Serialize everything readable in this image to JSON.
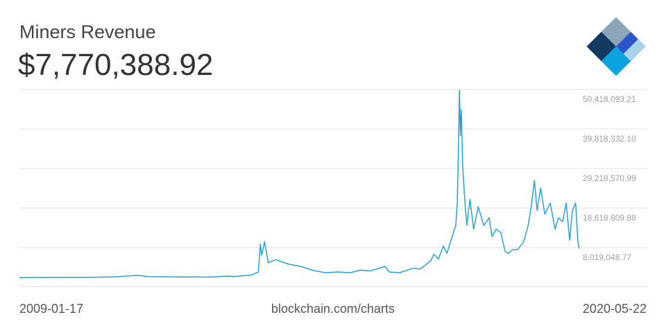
{
  "chart_data": {
    "type": "line",
    "title": "Miners Revenue",
    "subtitle": "$7,770,388.92",
    "source": "blockchain.com/charts",
    "xlim": [
      "2009-01-17",
      "2020-05-22"
    ],
    "ylim": [
      -2394751,
      50418093.21
    ],
    "yticks": [
      {
        "value": 8019048.77,
        "label": "8,019,048.77"
      },
      {
        "value": 18618809.88,
        "label": "18,618,809.88"
      },
      {
        "value": 29218570.99,
        "label": "29,218,570.99"
      },
      {
        "value": 39818332.1,
        "label": "39,818,332.10"
      },
      {
        "value": 50418093.21,
        "label": "50,418,093.21"
      }
    ],
    "grid": true,
    "series": [
      {
        "name": "Miners Revenue",
        "color": "#2a9fd6",
        "x": [
          "2009-01-17",
          "2009-06-01",
          "2010-01-01",
          "2010-07-01",
          "2011-01-01",
          "2011-06-10",
          "2011-09-01",
          "2012-01-01",
          "2012-06-01",
          "2012-11-28",
          "2013-04-01",
          "2013-06-01",
          "2013-10-01",
          "2013-11-20",
          "2013-12-05",
          "2013-12-15",
          "2014-01-05",
          "2014-02-01",
          "2014-04-01",
          "2014-07-01",
          "2014-10-01",
          "2015-01-01",
          "2015-04-01",
          "2015-07-01",
          "2015-10-01",
          "2015-12-15",
          "2016-03-01",
          "2016-06-15",
          "2016-07-15",
          "2016-10-01",
          "2017-01-05",
          "2017-03-01",
          "2017-05-20",
          "2017-06-10",
          "2017-07-15",
          "2017-08-20",
          "2017-09-15",
          "2017-10-20",
          "2017-11-20",
          "2017-12-01",
          "2017-12-10",
          "2017-12-17",
          "2017-12-24",
          "2017-12-31",
          "2018-01-10",
          "2018-01-25",
          "2018-02-10",
          "2018-03-05",
          "2018-04-01",
          "2018-05-05",
          "2018-06-15",
          "2018-07-25",
          "2018-08-15",
          "2018-09-15",
          "2018-10-20",
          "2018-11-20",
          "2018-12-15",
          "2019-01-15",
          "2019-02-20",
          "2019-04-05",
          "2019-05-10",
          "2019-06-01",
          "2019-06-25",
          "2019-07-15",
          "2019-08-10",
          "2019-09-10",
          "2019-10-20",
          "2019-11-25",
          "2019-12-20",
          "2020-01-20",
          "2020-02-15",
          "2020-03-12",
          "2020-04-01",
          "2020-04-25",
          "2020-05-12",
          "2020-05-22"
        ],
        "values": [
          0,
          50000,
          80000,
          60000,
          200000,
          600000,
          250000,
          200000,
          180000,
          150000,
          400000,
          300000,
          700000,
          1500000,
          9000000,
          6000000,
          9600000,
          4000000,
          4800000,
          3600000,
          3000000,
          1900000,
          1300000,
          1500000,
          1300000,
          2000000,
          1800000,
          3000000,
          1500000,
          1300000,
          2500000,
          2300000,
          4500000,
          6300000,
          5000000,
          8500000,
          6500000,
          10500000,
          14000000,
          20000000,
          35000000,
          50200000,
          38000000,
          45000000,
          30000000,
          21000000,
          14000000,
          21000000,
          13000000,
          19000000,
          14000000,
          16000000,
          11000000,
          13000000,
          12000000,
          7000000,
          6500000,
          7500000,
          7500000,
          9500000,
          14000000,
          19000000,
          26000000,
          18000000,
          24000000,
          17000000,
          20000000,
          13000000,
          16000000,
          15000000,
          20000000,
          10000000,
          18000000,
          20000000,
          9500000,
          7770388.92
        ]
      }
    ]
  }
}
